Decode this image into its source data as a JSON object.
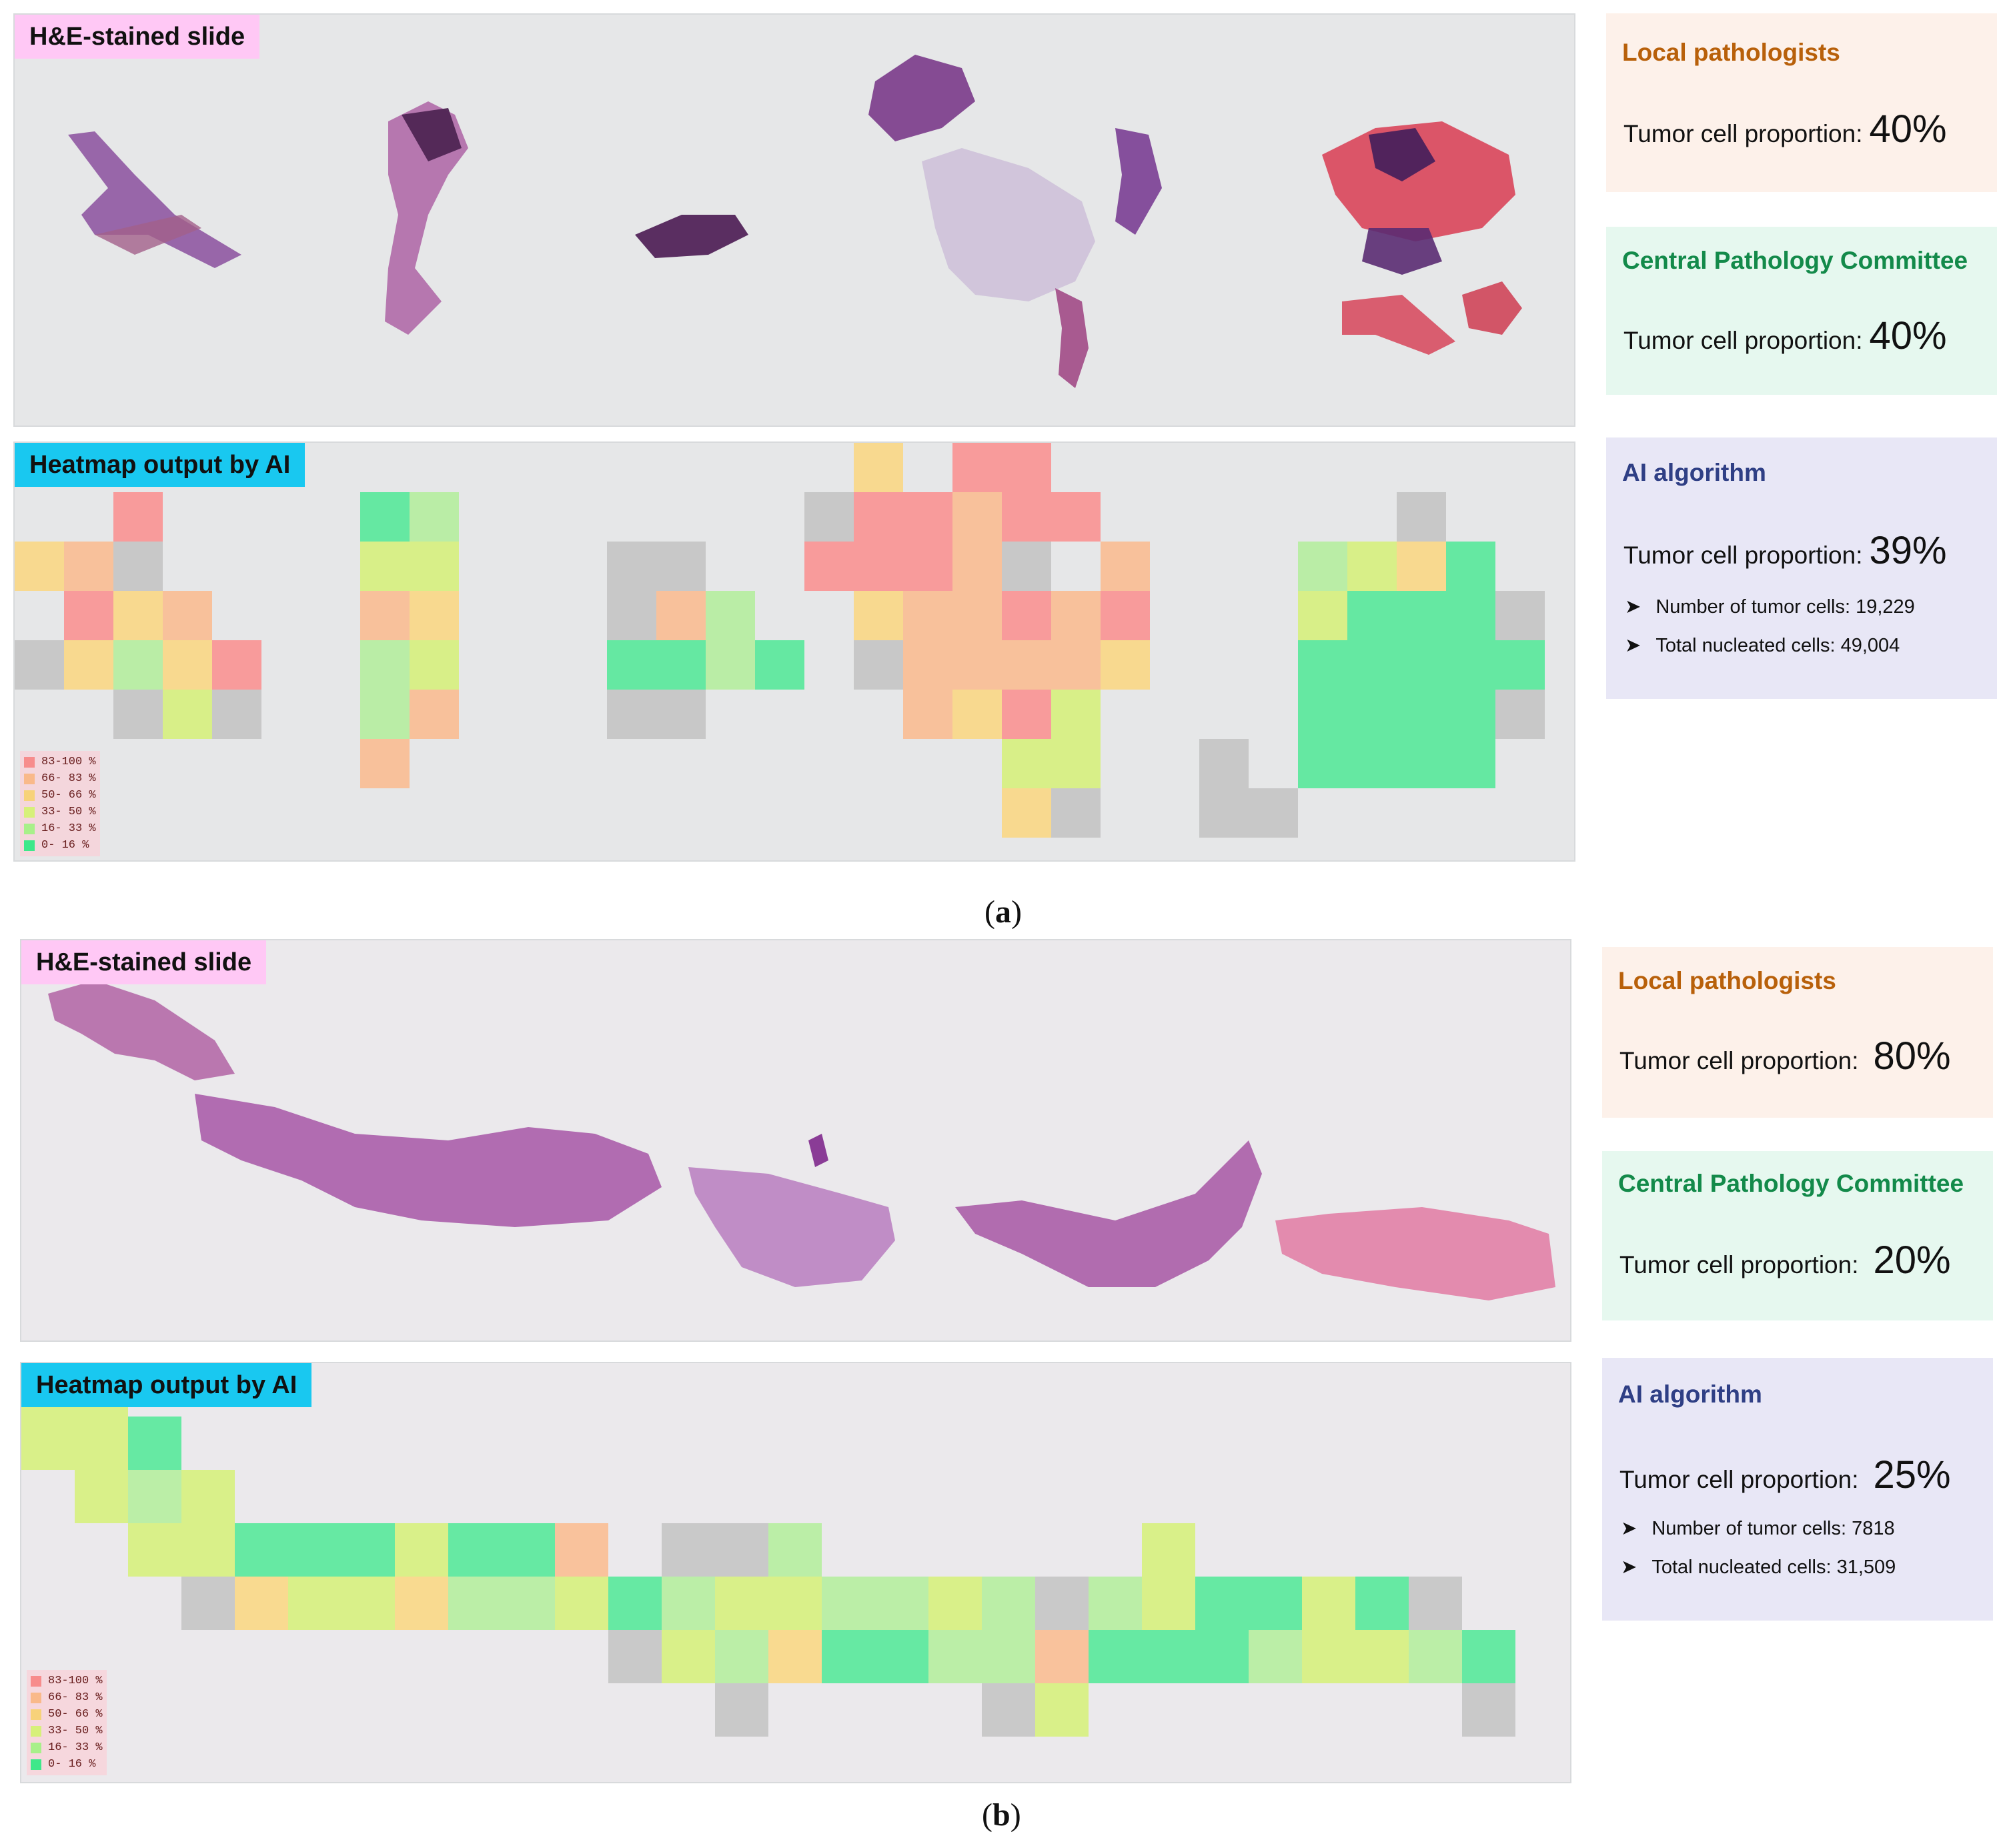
{
  "panel_a": {
    "caption_open": "(",
    "caption_letter": "a",
    "caption_close": ")",
    "he_label": "H&E-stained slide",
    "heatmap_label": "Heatmap output by AI",
    "local": {
      "title": "Local pathologists",
      "label": "Tumor cell proportion:",
      "value": "40%"
    },
    "central": {
      "title": "Central Pathology Committee",
      "label": "Tumor cell proportion:",
      "value": "40%"
    },
    "ai": {
      "title": "AI algorithm",
      "label": "Tumor cell proportion:",
      "value": "39%",
      "bullet1": "Number of tumor cells: 19,229",
      "bullet2": "Total nucleated cells: 49,004"
    }
  },
  "panel_b": {
    "caption_open": "(",
    "caption_letter": "b",
    "caption_close": ")",
    "he_label": "H&E-stained slide",
    "heatmap_label": "Heatmap output by AI",
    "local": {
      "title": "Local pathologists",
      "label": "Tumor cell proportion:",
      "value": "80%"
    },
    "central": {
      "title": "Central Pathology Committee",
      "label": "Tumor cell proportion:",
      "value": "20%"
    },
    "ai": {
      "title": "AI algorithm",
      "label": "Tumor cell proportion:",
      "value": "25%",
      "bullet1": "Number of tumor cells:  7818",
      "bullet2": "Total  nucleated cells: 31,509"
    }
  },
  "legend": {
    "bullet_glyph": "➤",
    "items": [
      {
        "label": "83-100 %",
        "color": "#f78c8c"
      },
      {
        "label": "66- 83 %",
        "color": "#f9b98a"
      },
      {
        "label": "50- 66 %",
        "color": "#f7d27a"
      },
      {
        "label": "33- 50 %",
        "color": "#d7f07a"
      },
      {
        "label": "16- 33 %",
        "color": "#a8f08a"
      },
      {
        "label": " 0- 16 %",
        "color": "#3ee88a"
      }
    ]
  },
  "colors": {
    "gray_tile": "#bdbdbd",
    "red": "#ff7a7a",
    "orange": "#ffb07a",
    "yellow": "#ffd36a",
    "lime": "#d2f260",
    "lightgreen": "#a6f08a",
    "green": "#2ee884"
  }
}
